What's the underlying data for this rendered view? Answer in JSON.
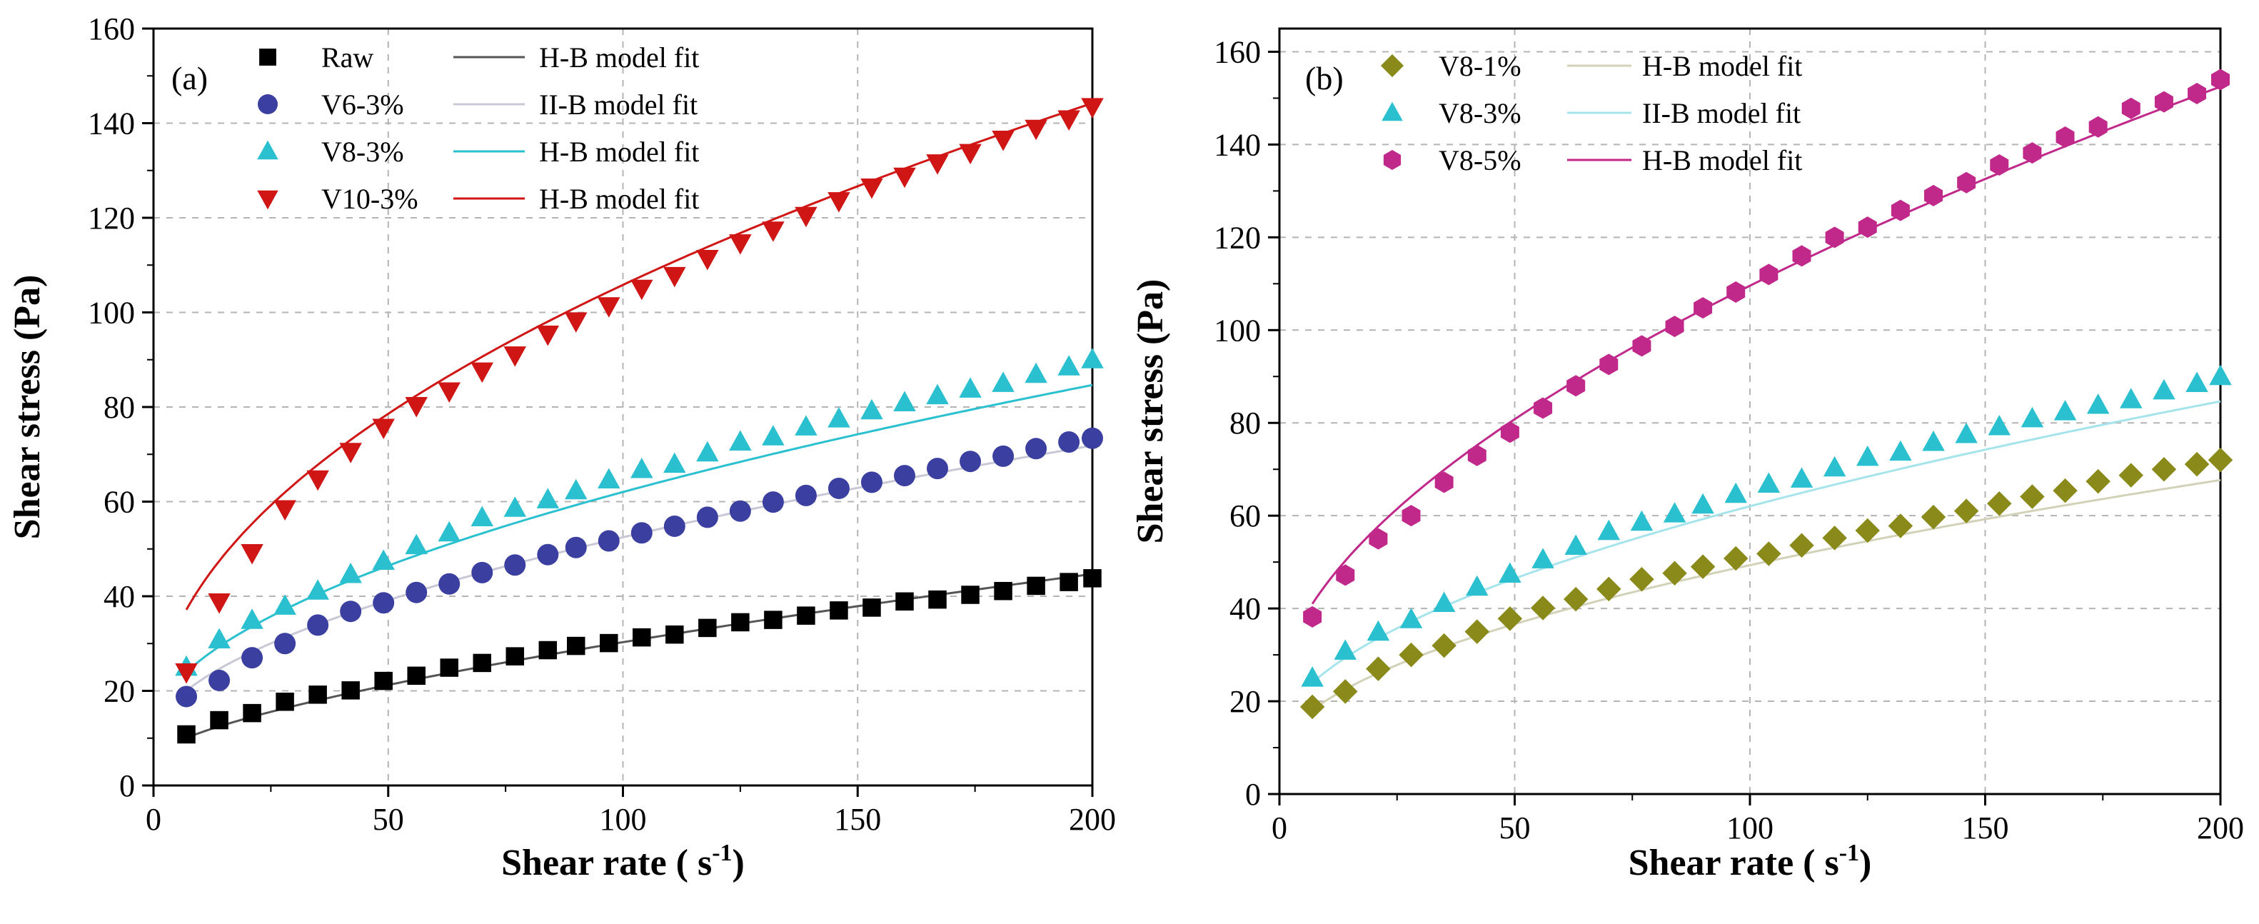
{
  "chart_data": [
    {
      "type": "scatter",
      "panel": "(a)",
      "xlabel": "Shear rate ( s",
      "xlabel_sup": "-1",
      "xlabel_close": ")",
      "ylabel": "Shear stress (Pa)",
      "xlim": [
        0,
        200
      ],
      "ylim": [
        0,
        160
      ],
      "xticks": [
        0,
        50,
        100,
        150,
        200
      ],
      "yticks": [
        0,
        20,
        40,
        60,
        80,
        100,
        120,
        140,
        160
      ],
      "grid": true,
      "legend": "top-left",
      "x": [
        7,
        14,
        21,
        28,
        35,
        42,
        49,
        56,
        63,
        70,
        77,
        84,
        90,
        97,
        104,
        111,
        118,
        125,
        132,
        139,
        146,
        153,
        160,
        167,
        174,
        181,
        188,
        195,
        200
      ],
      "series": [
        {
          "name": "Raw",
          "marker": "square",
          "color": "#000000",
          "fit_label": "H-B model fit",
          "fit_color": "#555555",
          "tau0": 6.0,
          "K": 1.1,
          "n": 0.672,
          "values": [
            10.8,
            13.8,
            15.3,
            17.7,
            19.2,
            20.1,
            22.1,
            23.2,
            24.9,
            25.9,
            27.3,
            28.6,
            29.5,
            30.1,
            31.3,
            31.9,
            33.3,
            34.5,
            35.0,
            35.9,
            37.0,
            37.6,
            38.9,
            39.3,
            40.3,
            41.1,
            42.2,
            43.0,
            43.8
          ]
        },
        {
          "name": "V6-3%",
          "marker": "circle",
          "color": "#3a3fa0",
          "fit_label": "II-B model fit",
          "fit_color": "#c8c8d6",
          "tau0": 10.0,
          "K": 3.5,
          "n": 0.542,
          "values": [
            18.8,
            22.2,
            27.0,
            30.0,
            33.9,
            36.8,
            38.6,
            40.8,
            42.6,
            45.0,
            46.6,
            48.8,
            50.3,
            51.7,
            53.4,
            54.8,
            56.7,
            58.0,
            59.9,
            61.3,
            62.8,
            64.1,
            65.5,
            67.0,
            68.5,
            69.6,
            71.2,
            72.6,
            73.4
          ]
        },
        {
          "name": "V8-3%",
          "marker": "triangle-up",
          "color": "#2ac0cf",
          "fit_label": "H-B model fit",
          "fit_color": "#2ac0cf",
          "tau0": 12.0,
          "K": 4.2,
          "n": 0.538,
          "values": [
            25.0,
            30.8,
            34.9,
            37.9,
            41.1,
            44.6,
            47.4,
            50.7,
            53.4,
            56.6,
            58.6,
            60.4,
            62.3,
            64.6,
            66.8,
            67.9,
            70.3,
            72.6,
            73.7,
            75.8,
            77.5,
            79.2,
            80.9,
            82.4,
            83.8,
            85.0,
            86.9,
            88.5,
            90.0
          ]
        },
        {
          "name": "V10-3%",
          "marker": "triangle-down",
          "color": "#d01515",
          "fit_label": "H-B model fit",
          "fit_color": "#d01515",
          "tau0": 12.0,
          "K": 9.6,
          "n": 0.495,
          "values": [
            24.0,
            38.8,
            49.2,
            58.5,
            64.8,
            70.6,
            75.7,
            80.3,
            83.4,
            87.6,
            91.0,
            95.4,
            98.2,
            101.4,
            105.1,
            107.8,
            111.4,
            114.7,
            117.4,
            120.5,
            123.6,
            126.5,
            128.8,
            131.6,
            133.8,
            136.6,
            138.9,
            140.9,
            143.5
          ]
        }
      ]
    },
    {
      "type": "scatter",
      "panel": "(b)",
      "xlabel": "Shear rate ( s",
      "xlabel_sup": "-1",
      "xlabel_close": ")",
      "ylabel": "Shear stress (Pa)",
      "xlim": [
        0,
        200
      ],
      "ylim": [
        0,
        165
      ],
      "xticks": [
        0,
        50,
        100,
        150,
        200
      ],
      "yticks": [
        0,
        20,
        40,
        60,
        80,
        100,
        120,
        140,
        160
      ],
      "grid": true,
      "legend": "top-left",
      "x": [
        7,
        14,
        21,
        28,
        35,
        42,
        49,
        56,
        63,
        70,
        77,
        84,
        90,
        97,
        104,
        111,
        118,
        125,
        132,
        139,
        146,
        153,
        160,
        167,
        174,
        181,
        188,
        195,
        200
      ],
      "series": [
        {
          "name": "V8-1%",
          "marker": "diamond",
          "color": "#8a8a1a",
          "fit_label": "H-B model fit",
          "fit_color": "#d2d2b8",
          "tau0": 8.0,
          "K": 3.6,
          "n": 0.53,
          "values": [
            18.8,
            22.1,
            27.0,
            30.0,
            32.0,
            35.0,
            37.8,
            40.1,
            42.0,
            44.2,
            46.3,
            47.6,
            49.0,
            50.8,
            51.8,
            53.6,
            55.2,
            56.8,
            57.8,
            59.7,
            61.0,
            62.6,
            64.1,
            65.4,
            67.4,
            68.7,
            70.0,
            71.1,
            72.0
          ]
        },
        {
          "name": "V8-3%",
          "marker": "triangle-up",
          "color": "#2ac0cf",
          "fit_label": "II-B model fit",
          "fit_color": "#a6e4ec",
          "tau0": 12.0,
          "K": 4.2,
          "n": 0.538,
          "values": [
            25.0,
            30.8,
            34.9,
            37.6,
            41.1,
            44.6,
            47.4,
            50.5,
            53.4,
            56.6,
            58.6,
            60.4,
            62.3,
            64.6,
            66.8,
            67.9,
            70.3,
            72.6,
            73.7,
            75.8,
            77.5,
            79.2,
            80.9,
            82.4,
            83.8,
            85.0,
            86.9,
            88.5,
            90.0
          ]
        },
        {
          "name": "V8-5%",
          "marker": "hexagon",
          "color": "#c0288a",
          "fit_label": "H-B model fit",
          "fit_color": "#c0288a",
          "tau0": 22.0,
          "K": 6.2,
          "n": 0.575,
          "values": [
            38.2,
            47.2,
            55.0,
            60.0,
            67.2,
            73.0,
            78.0,
            83.2,
            88.0,
            92.6,
            96.6,
            100.8,
            104.8,
            108.2,
            112.0,
            116.0,
            120.0,
            122.2,
            125.8,
            129.0,
            131.8,
            135.6,
            138.2,
            141.6,
            143.8,
            147.8,
            149.2,
            151.0,
            154.0
          ]
        }
      ]
    }
  ]
}
